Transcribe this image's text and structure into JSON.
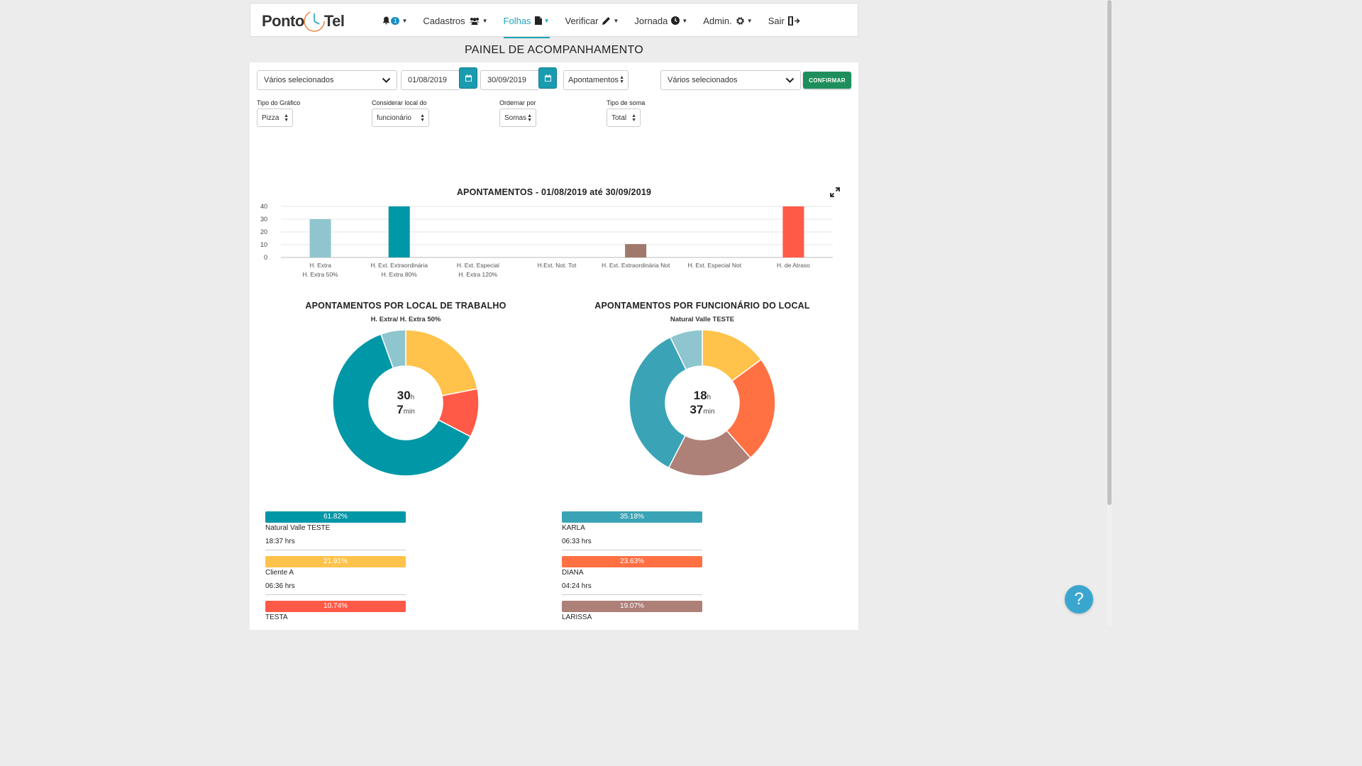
{
  "nav": {
    "logo_left": "Ponto",
    "logo_right": "Tel",
    "notification_count": "1",
    "items": [
      {
        "label": "Cadastros",
        "icon": "users-icon"
      },
      {
        "label": "Folhas",
        "icon": "file-icon",
        "active": true
      },
      {
        "label": "Verificar",
        "icon": "pencil-icon"
      },
      {
        "label": "Jornada",
        "icon": "clock-icon"
      },
      {
        "label": "Admin.",
        "icon": "gear-icon"
      },
      {
        "label": "Sair",
        "icon": "exit-icon"
      }
    ]
  },
  "page_title": "PAINEL DE ACOMPANHAMENTO",
  "filters": {
    "select1": "Vários selecionados",
    "date_start": "01/08/2019",
    "date_end": "30/09/2019",
    "type": "Apontamentos",
    "select2": "Vários selecionados",
    "confirm": "CONFIRMAR",
    "chart_type_label": "Tipo do Gráfico",
    "chart_type": "Pizza",
    "local_label": "Considerar local do",
    "local": "funcionário",
    "order_label": "Ordernar por",
    "order": "Somas",
    "sum_label": "Tipo de soma",
    "sum": "Total"
  },
  "donut1": {
    "hours": "30",
    "hours_unit": "h",
    "minutes": "7",
    "minutes_unit": "min"
  },
  "donut2": {
    "hours": "18",
    "hours_unit": "h",
    "minutes": "37",
    "minutes_unit": "min"
  },
  "legend1": [
    {
      "percent": "61.82%",
      "name": "Natural Valle TESTE",
      "hrs": "18:37 hrs",
      "color": "#0097a7"
    },
    {
      "percent": "21.91%",
      "name": "Cliente A",
      "hrs": "06:36 hrs",
      "color": "#ffc24a"
    },
    {
      "percent": "10.74%",
      "name": "TESTA",
      "hrs": "",
      "color": "#ff5a47"
    }
  ],
  "legend2": [
    {
      "percent": "35.18%",
      "name": "KARLA",
      "hrs": "06:33 hrs",
      "color": "#3ba3b6"
    },
    {
      "percent": "23.63%",
      "name": "DIANA",
      "hrs": "04:24 hrs",
      "color": "#ff7043"
    },
    {
      "percent": "19.07%",
      "name": "LARISSA",
      "hrs": "",
      "color": "#ad8078"
    }
  ],
  "chart_data": [
    {
      "type": "bar",
      "title": "APONTAMENTOS - 01/08/2019 até 30/09/2019",
      "categories": [
        [
          "H. Extra",
          "H. Extra 50%"
        ],
        [
          "H. Ext. Extraordinária",
          "H. Extra 80%"
        ],
        [
          "H. Ext. Especial",
          "H. Extra 120%"
        ],
        [
          "H.Ext. Not. Tot"
        ],
        [
          "H. Ext. Extraordinária Not"
        ],
        [
          "H. Ext. Especial Not"
        ],
        [
          "H. de Atraso"
        ]
      ],
      "values": [
        30,
        40,
        0,
        0,
        10.5,
        0,
        40
      ],
      "colors": [
        "#8fc5ce",
        "#0097a7",
        "#cccccc",
        "#cccccc",
        "#a1786c",
        "#cccccc",
        "#ff5a47"
      ],
      "yticks": [
        0,
        10,
        20,
        30,
        40
      ],
      "ylim": [
        0,
        40
      ],
      "grid": true
    },
    {
      "type": "pie",
      "title": "APONTAMENTOS POR LOCAL DE TRABALHO",
      "subtitle": "H. Extra/ H. Extra 50%",
      "slices": [
        {
          "value": 61.82,
          "color": "#0097a7"
        },
        {
          "value": 21.91,
          "color": "#ffc24a"
        },
        {
          "value": 10.74,
          "color": "#ff5a47"
        },
        {
          "value": 5.53,
          "color": "#8fc5ce"
        }
      ],
      "order_clockwise_from_top": [
        1,
        2,
        0,
        3
      ]
    },
    {
      "type": "pie",
      "title": "APONTAMENTOS POR FUNCIONÁRIO DO LOCAL",
      "subtitle": "Natural Valle TESTE",
      "slices": [
        {
          "value": 35.18,
          "color": "#3ba3b6"
        },
        {
          "value": 23.63,
          "color": "#ff7043"
        },
        {
          "value": 19.07,
          "color": "#ad8078"
        },
        {
          "value": 14.9,
          "color": "#ffc24a"
        },
        {
          "value": 7.22,
          "color": "#8fc5ce"
        }
      ],
      "order_clockwise_from_top": [
        3,
        1,
        2,
        0,
        4
      ]
    }
  ],
  "help": "?"
}
